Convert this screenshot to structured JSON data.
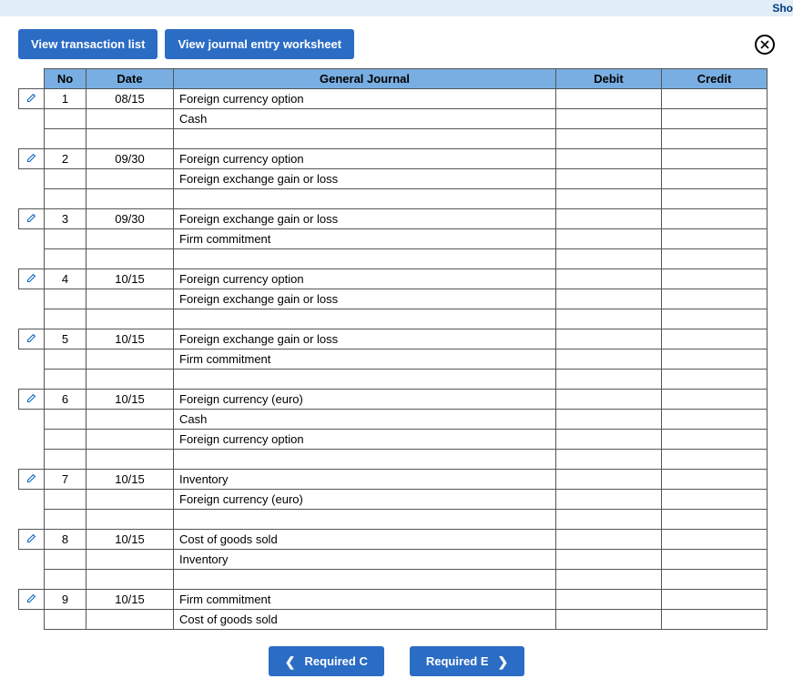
{
  "banner": {
    "link_text": "Sho"
  },
  "toolbar": {
    "view_transaction_list": "View transaction list",
    "view_journal_worksheet": "View journal entry worksheet"
  },
  "table": {
    "headers": {
      "no": "No",
      "date": "Date",
      "general_journal": "General Journal",
      "debit": "Debit",
      "credit": "Credit"
    },
    "entries": [
      {
        "no": "1",
        "date": "08/15",
        "lines": [
          "Foreign currency option",
          "Cash"
        ],
        "blanks_after": 1
      },
      {
        "no": "2",
        "date": "09/30",
        "lines": [
          "Foreign currency option",
          "Foreign exchange gain or loss"
        ],
        "blanks_after": 1
      },
      {
        "no": "3",
        "date": "09/30",
        "lines": [
          "Foreign exchange gain or loss",
          "Firm commitment"
        ],
        "blanks_after": 1
      },
      {
        "no": "4",
        "date": "10/15",
        "lines": [
          "Foreign currency option",
          "Foreign exchange gain or loss"
        ],
        "blanks_after": 1
      },
      {
        "no": "5",
        "date": "10/15",
        "lines": [
          "Foreign exchange gain or loss",
          "Firm commitment"
        ],
        "blanks_after": 1
      },
      {
        "no": "6",
        "date": "10/15",
        "lines": [
          "Foreign currency (euro)",
          "Cash",
          "Foreign currency option"
        ],
        "blanks_after": 1
      },
      {
        "no": "7",
        "date": "10/15",
        "lines": [
          "Inventory",
          "Foreign currency (euro)"
        ],
        "blanks_after": 1
      },
      {
        "no": "8",
        "date": "10/15",
        "lines": [
          "Cost of goods sold",
          "Inventory"
        ],
        "blanks_after": 1
      },
      {
        "no": "9",
        "date": "10/15",
        "lines": [
          "Firm commitment",
          "Cost of goods sold"
        ],
        "blanks_after": 0
      }
    ]
  },
  "nav": {
    "prev": "Required C",
    "next": "Required E"
  },
  "style": {
    "header_bg": "#78aee2",
    "button_bg": "#2b6cc4",
    "banner_bg": "#e1edf7",
    "border_color": "#555555",
    "pencil_color": "#0b63c5"
  }
}
